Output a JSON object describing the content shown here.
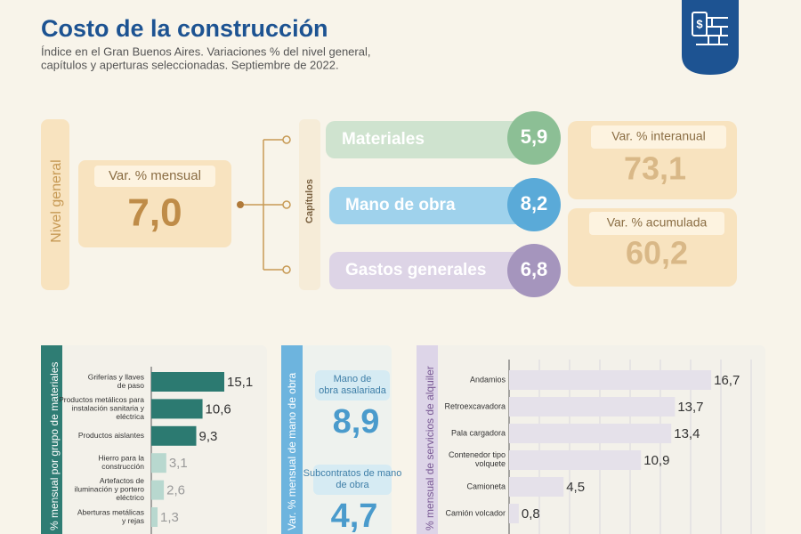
{
  "header": {
    "title": "Costo de la construcción",
    "subtitle_lines": [
      "Índice en el Gran Buenos Aires. Variaciones % del nivel general,",
      "capítulos y aperturas seleccionadas. Septiembre de 2022."
    ]
  },
  "nivel_general": {
    "label": "Nivel general",
    "box_label": "Var. % mensual",
    "value": "7,0"
  },
  "capitulos": {
    "label": "Capítulos",
    "items": [
      {
        "name": "Materiales",
        "value": "5,9"
      },
      {
        "name": "Mano de obra",
        "value": "8,2"
      },
      {
        "name": "Gastos generales",
        "value": "6,8"
      }
    ]
  },
  "resumen": [
    {
      "label": "Var. % interanual",
      "value": "73,1"
    },
    {
      "label": "Var. % acumulada",
      "value": "60,2"
    }
  ],
  "mano_de_obra": {
    "label": "Var. % mensual de mano de obra",
    "items": [
      {
        "name": "Mano de obra asalariada",
        "value": "8,9"
      },
      {
        "name": "Subcontratos de mano de obra",
        "value": "4,7"
      }
    ]
  },
  "chart_data": [
    {
      "type": "bar",
      "orientation": "horizontal",
      "title": "% mensual por grupo de materiales",
      "categories": [
        "Griferías y llaves\nde paso",
        "Productos metálicos para\ninstalación sanitaria y\neléctrica",
        "Productos aislantes",
        "Hierro para la\nconstrucción",
        "Artefactos de\niluminación y portero\neléctrico",
        "Aberturas metálicas\ny rejas"
      ],
      "values": [
        15.1,
        10.6,
        9.3,
        3.1,
        2.6,
        1.3
      ],
      "value_labels": [
        "15,1",
        "10,6",
        "9,3",
        "3,1",
        "2,6",
        "1,3"
      ],
      "colors": [
        "#2c7a71",
        "#2c7a71",
        "#2c7a71",
        "#b8d8cf",
        "#b8d8cf",
        "#b8d8cf"
      ],
      "xlim": [
        0,
        20
      ]
    },
    {
      "type": "bar",
      "orientation": "horizontal",
      "title": "% mensual de servicios de alquiler",
      "categories": [
        "Andamios",
        "Retroexcavadora",
        "Pala cargadora",
        "Contenedor tipo\nvolquete",
        "Camioneta",
        "Camión volcador"
      ],
      "values": [
        16.7,
        13.7,
        13.4,
        10.9,
        4.5,
        0.8
      ],
      "value_labels": [
        "16,7",
        "13,7",
        "13,4",
        "10,9",
        "4,5",
        "0,8"
      ],
      "colors": [
        "#e5e1ea",
        "#e5e1ea",
        "#e5e1ea",
        "#e5e1ea",
        "#e5e1ea",
        "#e5e1ea"
      ],
      "xlim": [
        0,
        20
      ],
      "xticks": [
        0,
        2.5,
        5,
        7.5,
        10,
        12.5,
        15,
        17.5,
        20
      ],
      "grid": true
    }
  ]
}
